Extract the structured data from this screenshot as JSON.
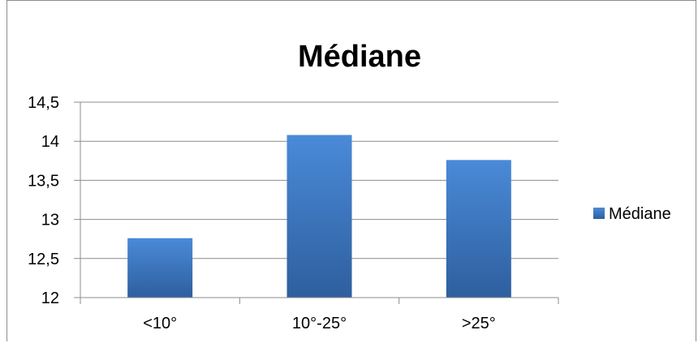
{
  "chart_data": {
    "type": "bar",
    "title": "Médiane",
    "categories": [
      "<10°",
      "10°-25°",
      ">25°"
    ],
    "series": [
      {
        "name": "Médiane",
        "values": [
          12.76,
          14.08,
          13.76
        ]
      }
    ],
    "ylim": [
      12,
      14.5
    ],
    "yticks": [
      "12",
      "12,5",
      "13",
      "13,5",
      "14",
      "14,5"
    ],
    "ytick_values": [
      12,
      12.5,
      13,
      13.5,
      14,
      14.5
    ],
    "grid": true,
    "legend_position": "right",
    "colors": {
      "bar_top": "#4a8ad8",
      "bar_bottom": "#2e5f9e",
      "grid": "#8c8c8c",
      "axis": "#8c8c8c"
    }
  }
}
